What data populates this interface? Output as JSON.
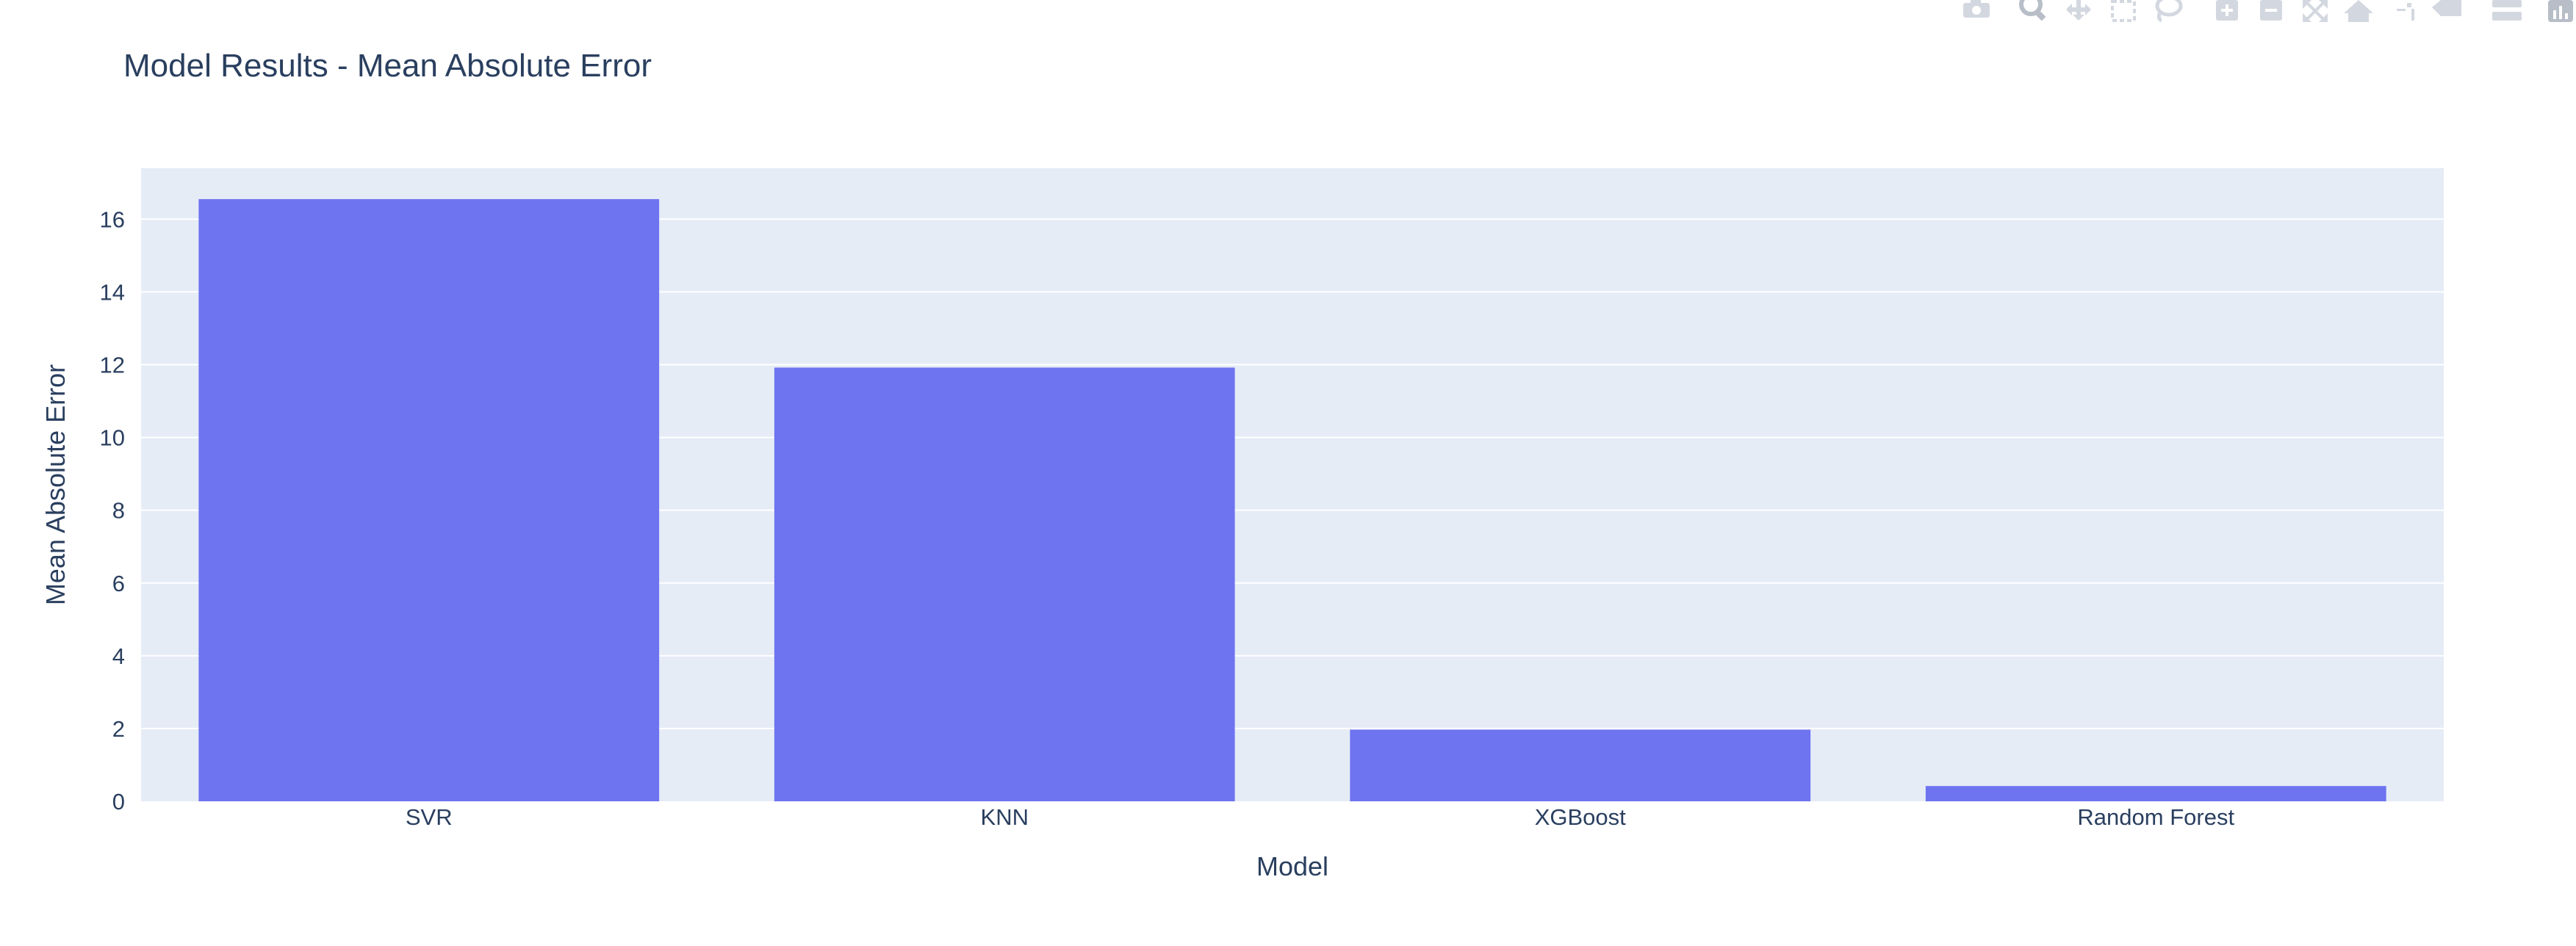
{
  "modebar": {
    "icons": [
      "camera-icon",
      "zoom-icon",
      "pan-icon",
      "box-select-icon",
      "lasso-select-icon",
      "zoom-in-icon",
      "zoom-out-icon",
      "autoscale-icon",
      "reset-axes-icon",
      "spike-lines-icon",
      "hover-closest-icon",
      "hover-compare-icon",
      "plotly-logo-icon"
    ]
  },
  "colors": {
    "bar": "#6e73f0",
    "plot_bg": "#e5ecf6",
    "grid": "#ffffff",
    "text": "#2a3f5f"
  },
  "chart_data": {
    "type": "bar",
    "title": "Model Results - Mean Absolute Error",
    "xlabel": "Model",
    "ylabel": "Mean Absolute Error",
    "categories": [
      "SVR",
      "KNN",
      "XGBoost",
      "Random Forest"
    ],
    "values": [
      16.55,
      11.92,
      1.97,
      0.42
    ],
    "ylim": [
      0,
      17.4
    ],
    "yticks": [
      0,
      2,
      4,
      6,
      8,
      10,
      12,
      14,
      16
    ],
    "grid": true,
    "legend": "none"
  }
}
